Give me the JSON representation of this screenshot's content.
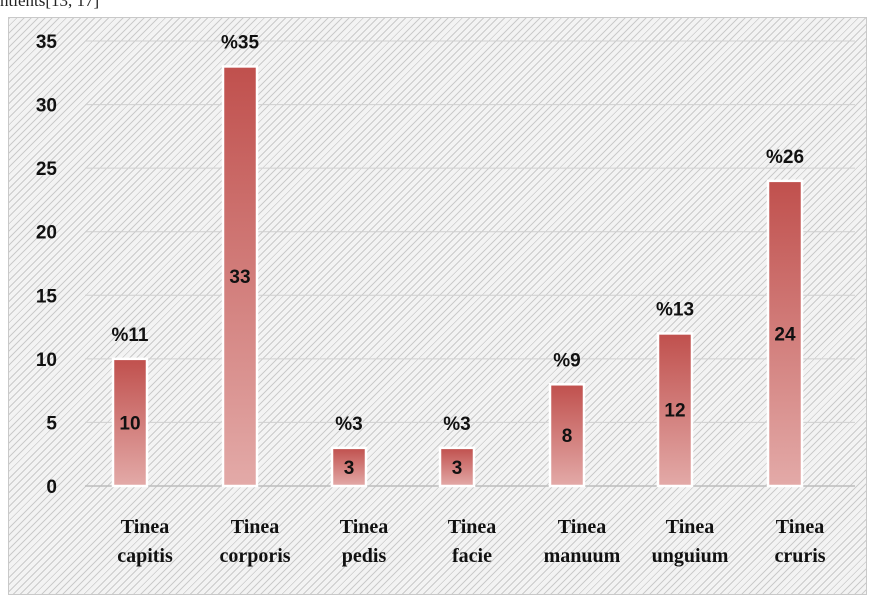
{
  "header_fragment": "ntients[13, 17]",
  "chart_data": {
    "type": "bar",
    "categories": [
      [
        "Tinea",
        "capitis"
      ],
      [
        "Tinea",
        "corporis"
      ],
      [
        "Tinea",
        "pedis"
      ],
      [
        "Tinea",
        "facie"
      ],
      [
        "Tinea",
        "manuum"
      ],
      [
        "Tinea",
        "unguium"
      ],
      [
        "Tinea",
        "cruris"
      ]
    ],
    "values": [
      10,
      33,
      3,
      3,
      8,
      12,
      24
    ],
    "percent_labels": [
      "%11",
      "%35",
      "%3",
      "%3",
      "%9",
      "%13",
      "%26"
    ],
    "yticks": [
      0,
      5,
      10,
      15,
      20,
      25,
      30,
      35
    ],
    "ylim": [
      0,
      35
    ],
    "grid": true,
    "title": "",
    "xlabel": "",
    "ylabel": "",
    "colors": {
      "bar_top": "#c0504d",
      "bar_bottom": "#e3aaa8",
      "grid": "#d0d0d0",
      "baseline": "#bdbdbd"
    }
  }
}
